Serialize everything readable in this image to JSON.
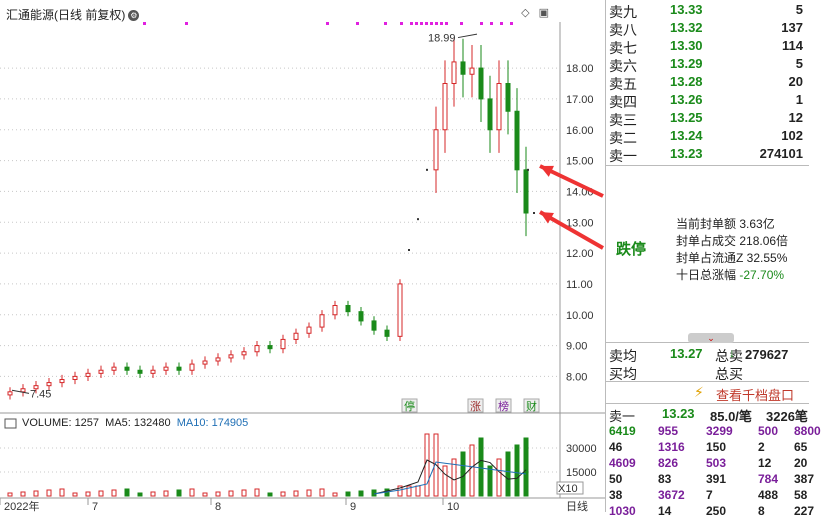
{
  "chart": {
    "title": "汇通能源(日线 前复权)",
    "high_label": "18.99",
    "low_label": "7.45",
    "price_ticks": [
      "18.00",
      "17.00",
      "16.00",
      "15.00",
      "14.00",
      "13.00",
      "12.00",
      "11.00",
      "10.00",
      "9.00",
      "8.00"
    ],
    "marker_labels": [
      "停",
      "涨",
      "榜",
      "财"
    ],
    "volume_legend": {
      "volume": "VOLUME: 1257",
      "ma5": "MA5: 132480",
      "ma10": "MA10: 174905"
    },
    "volume_ticks": [
      "30000",
      "15000"
    ],
    "volume_unit": "X10",
    "x_labels": [
      "2022年",
      "7",
      "8",
      "9",
      "10",
      "日线"
    ]
  },
  "chart_data": {
    "type": "candlestick",
    "title": "汇通能源(日线 前复权)",
    "ylim": [
      7.3,
      19.3
    ],
    "y_ticks": [
      8,
      9,
      10,
      11,
      12,
      13,
      14,
      15,
      16,
      17,
      18
    ],
    "high": 18.99,
    "low": 7.45,
    "candles_note": "daily OHLC approximated",
    "series": [
      {
        "name": "price",
        "values": [
          7.5,
          7.6,
          7.7,
          7.8,
          7.9,
          8.0,
          8.1,
          8.2,
          8.3,
          8.2,
          8.1,
          8.2,
          8.3,
          8.2,
          8.4,
          8.5,
          8.6,
          8.7,
          8.8,
          9.0,
          8.9,
          9.2,
          9.4,
          9.6,
          10.0,
          10.3,
          10.1,
          9.8,
          9.5,
          9.3,
          11.0,
          12.1,
          13.1,
          14.7,
          16.0,
          17.5,
          18.2,
          17.8,
          18.0,
          17.0,
          16.0,
          17.5,
          16.6,
          14.7,
          13.3
        ]
      }
    ],
    "volume_ticks": [
      30000,
      15000
    ],
    "volume": {
      "name": "VOLUME",
      "value": 1257,
      "ma5": 132480,
      "ma10": 174905
    }
  },
  "orderbook": {
    "asks": [
      {
        "label": "卖九",
        "price": "13.33",
        "vol": "5"
      },
      {
        "label": "卖八",
        "price": "13.32",
        "vol": "137"
      },
      {
        "label": "卖七",
        "price": "13.30",
        "vol": "114"
      },
      {
        "label": "卖六",
        "price": "13.29",
        "vol": "5"
      },
      {
        "label": "卖五",
        "price": "13.28",
        "vol": "20"
      },
      {
        "label": "卖四",
        "price": "13.26",
        "vol": "1"
      },
      {
        "label": "卖三",
        "price": "13.25",
        "vol": "12"
      },
      {
        "label": "卖二",
        "price": "13.24",
        "vol": "102"
      },
      {
        "label": "卖一",
        "price": "13.23",
        "vol": "274101"
      }
    ],
    "limit_text": "跌停",
    "stats": [
      {
        "k": "当前封单额",
        "v": "3.63亿"
      },
      {
        "k": "封单占成交",
        "v": "218.06倍"
      },
      {
        "k": "封单占流通Z",
        "v": "32.55%"
      },
      {
        "k": "十日总涨幅",
        "v": "-27.70%"
      }
    ],
    "avg_sell_label": "卖均",
    "avg_sell": "13.27",
    "total_sell_label": "总卖",
    "total_sell": "279627",
    "avg_buy_label": "买均",
    "total_buy_label": "总买",
    "view_ten": "查看千档盘口",
    "queue_label": "卖一",
    "queue_price": "13.23",
    "queue_per": "85.0/笔",
    "queue_count": "3226笔",
    "queue_rows": [
      [
        "6419",
        "955",
        "3299",
        "500",
        "8800"
      ],
      [
        "46",
        "1316",
        "150",
        "2",
        "65"
      ],
      [
        "4609",
        "826",
        "503",
        "12",
        "20"
      ],
      [
        "50",
        "83",
        "391",
        "784",
        "387"
      ],
      [
        "38",
        "3672",
        "7",
        "488",
        "58"
      ],
      [
        "1030",
        "14",
        "250",
        "8",
        "227"
      ]
    ]
  },
  "colors": {
    "up": "#d62728",
    "down": "#1a8a1a",
    "ma5": "#222222",
    "ma10": "#1f6fb5",
    "accent": "#e33"
  }
}
